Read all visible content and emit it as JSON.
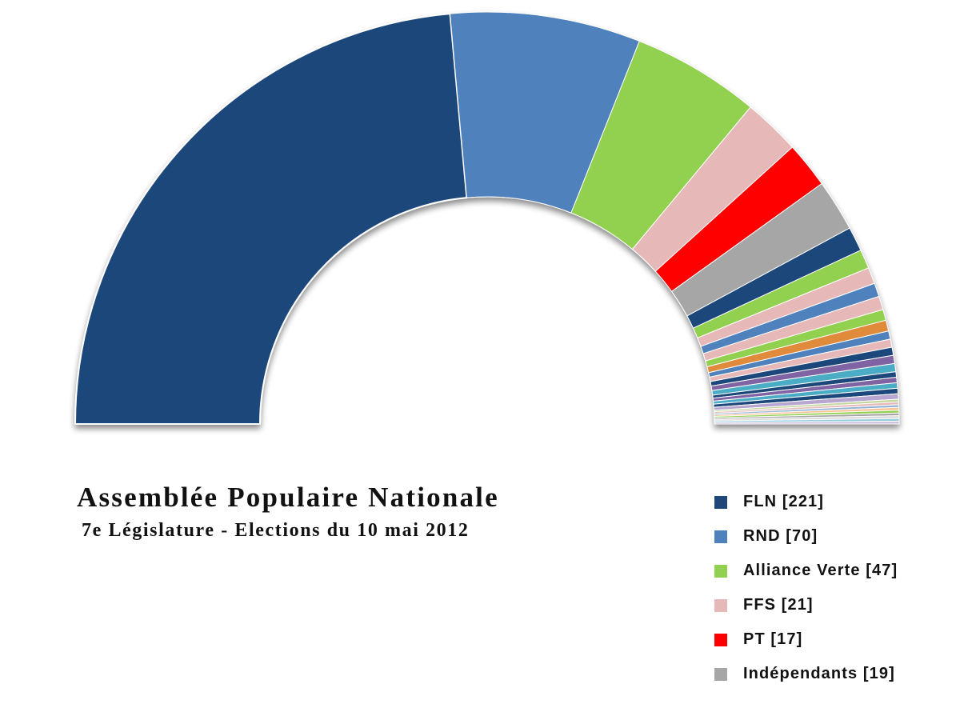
{
  "chart_data": {
    "type": "pie",
    "variant": "half-donut (parliament)",
    "title": "Assemblée Populaire Nationale",
    "subtitle": "7e Législature - Elections du 10 mai 2012",
    "legend_position": "bottom-right",
    "slices": [
      {
        "label": "FLN [221]",
        "value": 221,
        "color": "#1f477a"
      },
      {
        "label": "RND [70]",
        "value": 70,
        "color": "#4f81bd"
      },
      {
        "label": "Alliance Verte [47]",
        "value": 47,
        "color": "#92d050"
      },
      {
        "label": "FFS [21]",
        "value": 21,
        "color": "#e6b9b8"
      },
      {
        "label": "PT [17]",
        "value": 17,
        "color": "#ff0000"
      },
      {
        "label": "Indépendants [19]",
        "value": 19,
        "color": "#a6a6a6"
      },
      {
        "value": 9,
        "color": "#1f477a"
      },
      {
        "value": 7,
        "color": "#92d050"
      },
      {
        "value": 6,
        "color": "#e6b9b8"
      },
      {
        "value": 5,
        "color": "#4f81bd"
      },
      {
        "value": 5,
        "color": "#e6b9b8"
      },
      {
        "value": 4,
        "color": "#92d050"
      },
      {
        "value": 4,
        "color": "#e08b3a"
      },
      {
        "value": 3,
        "color": "#4f81bd"
      },
      {
        "value": 3,
        "color": "#e6b9b8"
      },
      {
        "value": 3,
        "color": "#1f477a"
      },
      {
        "value": 3,
        "color": "#8064a2"
      },
      {
        "value": 3,
        "color": "#4bacc6"
      },
      {
        "value": 2,
        "color": "#1f477a"
      },
      {
        "value": 2,
        "color": "#8064a2"
      },
      {
        "value": 2,
        "color": "#4bacc6"
      },
      {
        "value": 2,
        "color": "#1f477a"
      },
      {
        "value": 2,
        "color": "#b7a7d0"
      },
      {
        "value": 1,
        "color": "#c3d69b"
      },
      {
        "value": 1,
        "color": "#e6b9b8"
      },
      {
        "value": 1,
        "color": "#95b3d7"
      },
      {
        "value": 1,
        "color": "#fac090"
      },
      {
        "value": 1,
        "color": "#92d050"
      },
      {
        "value": 1,
        "color": "#a6a6a6"
      },
      {
        "value": 1,
        "color": "#d9d9d9"
      },
      {
        "value": 1,
        "color": "#93cddd"
      },
      {
        "value": 1,
        "color": "#ccc1da"
      }
    ]
  },
  "legend": {
    "items": [
      {
        "label": "FLN [221]",
        "color": "#1f477a"
      },
      {
        "label": "RND [70]",
        "color": "#4f81bd"
      },
      {
        "label": "Alliance Verte [47]",
        "color": "#92d050"
      },
      {
        "label": "FFS [21]",
        "color": "#e6b9b8"
      },
      {
        "label": "PT [17]",
        "color": "#ff0000"
      },
      {
        "label": "Indépendants [19]",
        "color": "#a6a6a6"
      }
    ]
  }
}
